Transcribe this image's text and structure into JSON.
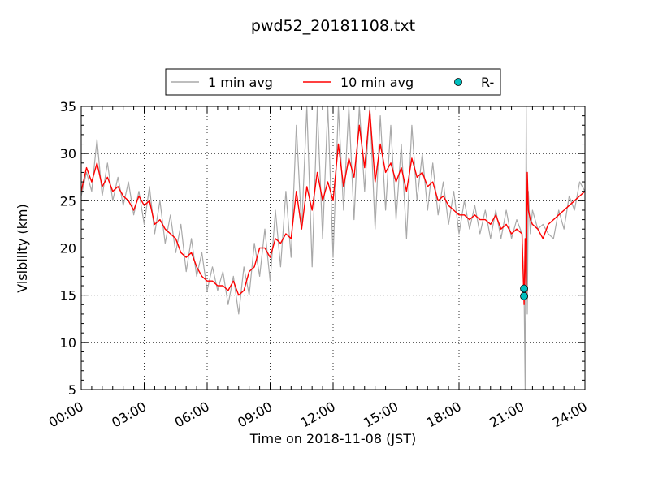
{
  "chart_data": {
    "type": "line",
    "title": "pwd52_20181108.txt",
    "xlabel": "Time on 2018-11-08 (JST)",
    "ylabel": "Visibility (km)",
    "xlim": [
      0,
      24
    ],
    "ylim": [
      5,
      35
    ],
    "x_ticks": [
      0,
      3,
      6,
      9,
      12,
      15,
      18,
      21,
      24
    ],
    "x_tick_labels": [
      "00:00",
      "03:00",
      "06:00",
      "09:00",
      "12:00",
      "15:00",
      "18:00",
      "21:00",
      "24:00"
    ],
    "y_ticks": [
      5,
      10,
      15,
      20,
      25,
      30,
      35
    ],
    "y_tick_labels": [
      "5",
      "10",
      "15",
      "20",
      "25",
      "30",
      "35"
    ],
    "grid": true,
    "legend_position": "top-center",
    "legend": [
      "1 min avg",
      "10 min avg",
      "R-"
    ],
    "series": [
      {
        "name": "1 min avg",
        "style": "line",
        "color": "#a9a9a9",
        "x": [
          0.0,
          0.25,
          0.5,
          0.75,
          1.0,
          1.25,
          1.5,
          1.75,
          2.0,
          2.25,
          2.5,
          2.75,
          3.0,
          3.25,
          3.5,
          3.75,
          4.0,
          4.25,
          4.5,
          4.75,
          5.0,
          5.25,
          5.5,
          5.75,
          6.0,
          6.25,
          6.5,
          6.75,
          7.0,
          7.25,
          7.5,
          7.75,
          8.0,
          8.25,
          8.5,
          8.75,
          9.0,
          9.25,
          9.5,
          9.75,
          10.0,
          10.25,
          10.5,
          10.75,
          11.0,
          11.25,
          11.5,
          11.75,
          12.0,
          12.25,
          12.5,
          12.75,
          13.0,
          13.25,
          13.5,
          13.75,
          14.0,
          14.25,
          14.5,
          14.75,
          15.0,
          15.25,
          15.5,
          15.75,
          16.0,
          16.25,
          16.5,
          16.75,
          17.0,
          17.25,
          17.5,
          17.75,
          18.0,
          18.25,
          18.5,
          18.75,
          19.0,
          19.25,
          19.5,
          19.75,
          20.0,
          20.25,
          20.5,
          20.75,
          21.0,
          21.1,
          21.15,
          21.2,
          21.25,
          21.3,
          21.4,
          21.5,
          21.75,
          22.0,
          22.25,
          22.5,
          22.75,
          23.0,
          23.25,
          23.5,
          23.75,
          24.0
        ],
        "y": [
          25.5,
          28.0,
          26.0,
          31.5,
          25.5,
          29.0,
          25.0,
          27.5,
          24.5,
          27.0,
          23.5,
          26.0,
          22.5,
          26.5,
          21.5,
          25.0,
          20.5,
          23.5,
          19.5,
          22.5,
          17.5,
          21.0,
          17.0,
          19.5,
          15.5,
          18.0,
          15.5,
          17.5,
          14.0,
          17.0,
          13.0,
          18.0,
          15.0,
          20.5,
          17.0,
          22.0,
          16.5,
          24.0,
          18.0,
          26.0,
          19.0,
          33.0,
          22.0,
          35.0,
          18.0,
          35.0,
          21.0,
          35.0,
          19.0,
          35.0,
          24.0,
          35.0,
          23.0,
          35.0,
          26.0,
          35.0,
          22.0,
          34.0,
          24.0,
          33.0,
          23.0,
          31.0,
          21.0,
          33.0,
          25.0,
          30.0,
          24.0,
          29.0,
          23.5,
          27.0,
          22.5,
          26.0,
          21.5,
          25.0,
          22.0,
          24.5,
          21.5,
          24.0,
          21.0,
          24.0,
          21.0,
          24.0,
          21.0,
          23.0,
          21.5,
          15.0,
          5.0,
          35.0,
          13.0,
          26.0,
          21.5,
          24.0,
          22.0,
          22.5,
          21.5,
          21.0,
          24.0,
          22.0,
          25.5,
          24.0,
          27.0,
          26.0
        ]
      },
      {
        "name": "10 min avg",
        "style": "line",
        "color": "#ff0000",
        "x": [
          0.0,
          0.25,
          0.5,
          0.75,
          1.0,
          1.25,
          1.5,
          1.75,
          2.0,
          2.25,
          2.5,
          2.75,
          3.0,
          3.25,
          3.5,
          3.75,
          4.0,
          4.25,
          4.5,
          4.75,
          5.0,
          5.25,
          5.5,
          5.75,
          6.0,
          6.25,
          6.5,
          6.75,
          7.0,
          7.25,
          7.5,
          7.75,
          8.0,
          8.25,
          8.5,
          8.75,
          9.0,
          9.25,
          9.5,
          9.75,
          10.0,
          10.25,
          10.5,
          10.75,
          11.0,
          11.25,
          11.5,
          11.75,
          12.0,
          12.25,
          12.5,
          12.75,
          13.0,
          13.25,
          13.5,
          13.75,
          14.0,
          14.25,
          14.5,
          14.75,
          15.0,
          15.25,
          15.5,
          15.75,
          16.0,
          16.25,
          16.5,
          16.75,
          17.0,
          17.25,
          17.5,
          17.75,
          18.0,
          18.25,
          18.5,
          18.75,
          19.0,
          19.25,
          19.5,
          19.75,
          20.0,
          20.25,
          20.5,
          20.75,
          21.0,
          21.1,
          21.15,
          21.2,
          21.25,
          21.3,
          21.4,
          21.5,
          21.75,
          22.0,
          22.25,
          22.5,
          22.75,
          23.0,
          23.25,
          23.5,
          23.75,
          24.0
        ],
        "y": [
          26.0,
          28.5,
          27.0,
          29.0,
          26.5,
          27.5,
          26.0,
          26.5,
          25.5,
          25.0,
          24.0,
          25.5,
          24.5,
          25.0,
          22.5,
          23.0,
          22.0,
          21.5,
          21.0,
          19.5,
          19.0,
          19.5,
          18.0,
          17.0,
          16.5,
          16.5,
          16.0,
          16.0,
          15.5,
          16.5,
          15.0,
          15.5,
          17.5,
          18.0,
          20.0,
          20.0,
          19.0,
          21.0,
          20.5,
          21.5,
          21.0,
          26.0,
          22.0,
          26.5,
          24.0,
          28.0,
          25.0,
          27.0,
          25.0,
          31.0,
          26.5,
          29.5,
          27.5,
          33.0,
          28.5,
          34.5,
          27.0,
          31.0,
          28.0,
          29.0,
          27.0,
          28.5,
          26.0,
          29.5,
          27.5,
          28.0,
          26.5,
          27.0,
          25.0,
          25.5,
          24.5,
          24.0,
          23.5,
          23.5,
          23.0,
          23.5,
          23.0,
          23.0,
          22.5,
          23.5,
          22.0,
          22.5,
          21.5,
          22.0,
          21.5,
          14.0,
          21.0,
          15.0,
          28.0,
          24.0,
          23.0,
          22.5,
          22.0,
          21.0,
          22.5,
          23.0,
          23.5,
          24.0,
          24.5,
          25.0,
          25.5,
          26.0
        ]
      },
      {
        "name": "R-",
        "style": "markers",
        "color": "#00bfbf",
        "x": [
          21.1,
          21.1
        ],
        "y": [
          15.7,
          14.9
        ]
      }
    ]
  }
}
